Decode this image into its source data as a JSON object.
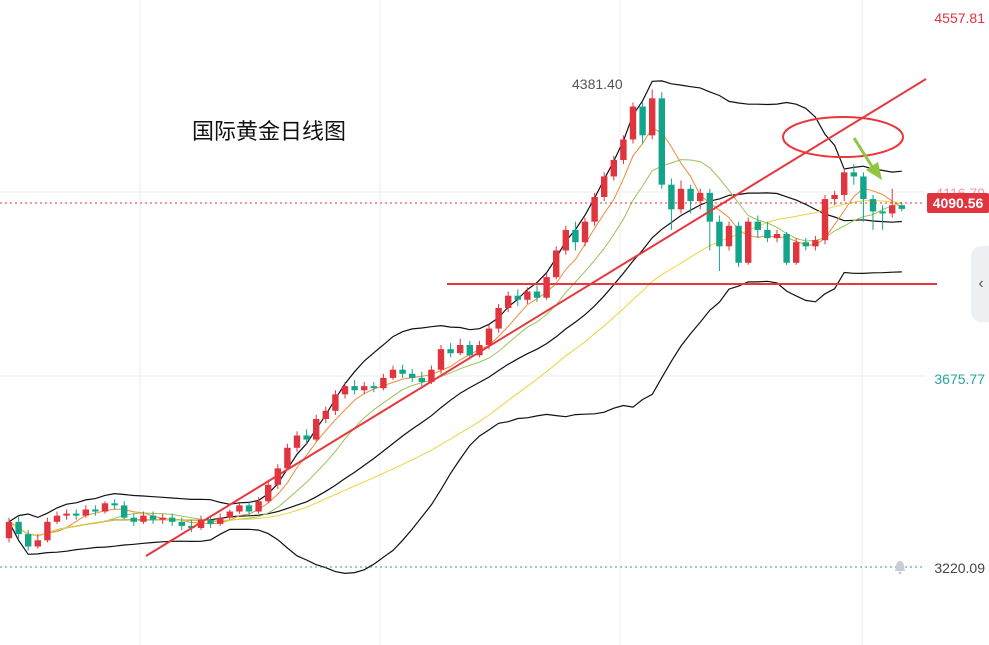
{
  "chart_data": {
    "type": "candlestick",
    "title": "国际黄金日线图",
    "y_axis_labels": [
      "4557.81",
      "4116.79",
      "3675.77",
      "3220.09"
    ],
    "current_price": "4090.56",
    "high_label": "4381.40",
    "candles": [
      [
        3290,
        3330,
        3280,
        3340
      ],
      [
        3330,
        3300,
        3290,
        3345
      ],
      [
        3300,
        3270,
        3260,
        3310
      ],
      [
        3270,
        3285,
        3265,
        3300
      ],
      [
        3285,
        3330,
        3280,
        3340
      ],
      [
        3330,
        3345,
        3325,
        3355
      ],
      [
        3345,
        3350,
        3335,
        3360
      ],
      [
        3350,
        3345,
        3335,
        3360
      ],
      [
        3345,
        3360,
        3340,
        3370
      ],
      [
        3360,
        3355,
        3345,
        3370
      ],
      [
        3355,
        3375,
        3350,
        3380
      ],
      [
        3375,
        3370,
        3360,
        3385
      ],
      [
        3370,
        3340,
        3335,
        3380
      ],
      [
        3340,
        3330,
        3320,
        3350
      ],
      [
        3330,
        3345,
        3325,
        3355
      ],
      [
        3345,
        3335,
        3325,
        3355
      ],
      [
        3335,
        3340,
        3325,
        3350
      ],
      [
        3340,
        3330,
        3320,
        3350
      ],
      [
        3330,
        3320,
        3310,
        3340
      ],
      [
        3320,
        3315,
        3305,
        3335
      ],
      [
        3315,
        3335,
        3310,
        3345
      ],
      [
        3335,
        3325,
        3315,
        3345
      ],
      [
        3325,
        3340,
        3320,
        3350
      ],
      [
        3340,
        3355,
        3335,
        3360
      ],
      [
        3355,
        3370,
        3350,
        3375
      ],
      [
        3370,
        3355,
        3345,
        3380
      ],
      [
        3355,
        3380,
        3350,
        3390
      ],
      [
        3380,
        3420,
        3375,
        3430
      ],
      [
        3420,
        3460,
        3410,
        3470
      ],
      [
        3460,
        3510,
        3455,
        3520
      ],
      [
        3510,
        3540,
        3500,
        3550
      ],
      [
        3540,
        3530,
        3520,
        3555
      ],
      [
        3530,
        3580,
        3525,
        3590
      ],
      [
        3580,
        3600,
        3570,
        3610
      ],
      [
        3600,
        3640,
        3590,
        3650
      ],
      [
        3640,
        3660,
        3630,
        3670
      ],
      [
        3660,
        3650,
        3640,
        3675
      ],
      [
        3650,
        3660,
        3640,
        3670
      ],
      [
        3660,
        3655,
        3645,
        3670
      ],
      [
        3655,
        3680,
        3650,
        3690
      ],
      [
        3680,
        3700,
        3675,
        3710
      ],
      [
        3700,
        3690,
        3680,
        3712
      ],
      [
        3690,
        3680,
        3670,
        3702
      ],
      [
        3680,
        3670,
        3660,
        3695
      ],
      [
        3670,
        3700,
        3665,
        3710
      ],
      [
        3700,
        3750,
        3690,
        3760
      ],
      [
        3750,
        3740,
        3730,
        3765
      ],
      [
        3740,
        3760,
        3735,
        3775
      ],
      [
        3760,
        3735,
        3725,
        3770
      ],
      [
        3735,
        3760,
        3730,
        3770
      ],
      [
        3760,
        3800,
        3750,
        3810
      ],
      [
        3800,
        3850,
        3790,
        3860
      ],
      [
        3850,
        3880,
        3840,
        3890
      ],
      [
        3880,
        3870,
        3855,
        3895
      ],
      [
        3870,
        3890,
        3860,
        3900
      ],
      [
        3890,
        3875,
        3865,
        3905
      ],
      [
        3875,
        3925,
        3870,
        3935
      ],
      [
        3925,
        3990,
        3920,
        4000
      ],
      [
        3990,
        4040,
        3980,
        4050
      ],
      [
        4040,
        4010,
        3990,
        4060
      ],
      [
        4010,
        4060,
        4000,
        4070
      ],
      [
        4060,
        4120,
        4050,
        4130
      ],
      [
        4120,
        4170,
        4110,
        4180
      ],
      [
        4170,
        4210,
        4160,
        4220
      ],
      [
        4210,
        4260,
        4200,
        4270
      ],
      [
        4260,
        4340,
        4250,
        4350
      ],
      [
        4340,
        4270,
        4250,
        4350
      ],
      [
        4270,
        4360,
        4260,
        4381.4
      ],
      [
        4360,
        4150,
        4140,
        4375
      ],
      [
        4150,
        4090,
        4040,
        4165
      ],
      [
        4090,
        4140,
        4080,
        4160
      ],
      [
        4140,
        4110,
        4080,
        4150
      ],
      [
        4110,
        4130,
        4090,
        4140
      ],
      [
        4130,
        4060,
        3990,
        4140
      ],
      [
        4060,
        4000,
        3940,
        4075
      ],
      [
        4000,
        4050,
        3990,
        4060
      ],
      [
        4050,
        3960,
        3950,
        4060
      ],
      [
        3960,
        4060,
        3955,
        4070
      ],
      [
        4060,
        4040,
        4020,
        4075
      ],
      [
        4040,
        4020,
        4010,
        4060
      ],
      [
        4020,
        4030,
        4010,
        4040
      ],
      [
        4030,
        3960,
        3955,
        4035
      ],
      [
        3960,
        4010,
        3955,
        4020
      ],
      [
        4010,
        4000,
        3990,
        4020
      ],
      [
        4000,
        4015,
        3990,
        4025
      ],
      [
        4015,
        4115,
        4005,
        4125
      ],
      [
        4115,
        4125,
        4100,
        4135
      ],
      [
        4125,
        4180,
        4110,
        4190
      ],
      [
        4180,
        4170,
        4150,
        4200
      ],
      [
        4170,
        4115,
        4060,
        4180
      ],
      [
        4115,
        4085,
        4040,
        4125
      ],
      [
        4085,
        4080,
        4040,
        4100
      ],
      [
        4080,
        4100,
        4070,
        4140
      ],
      [
        4100,
        4091,
        4085,
        4105
      ]
    ]
  }
}
